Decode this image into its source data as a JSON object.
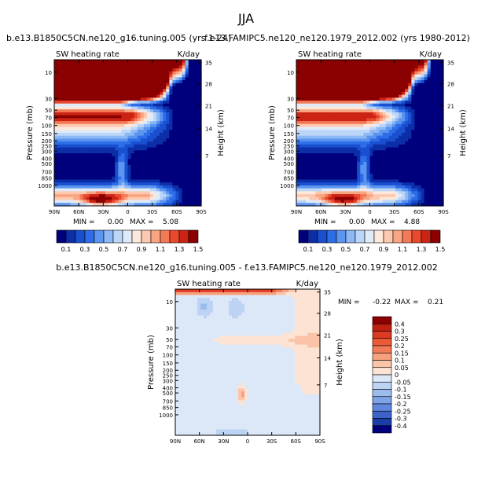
{
  "main_title": "JJA",
  "chart_data": [
    {
      "type": "heatmap",
      "case_title": "b.e13.B1850C5CN.ne120_g16.tuning.005 (yrs 1-24)",
      "field_label": "SW heating rate",
      "units": "K/day",
      "ylabel": "Pressure (mb)",
      "ylabel_right": "Height (km)",
      "x_ticks": [
        "90N",
        "60N",
        "30N",
        "0",
        "30S",
        "60S",
        "90S"
      ],
      "y_ticks": [
        "10",
        "30",
        "50",
        "70",
        "100",
        "150",
        "200",
        "250",
        "300",
        "400",
        "500",
        "700",
        "850",
        "1000"
      ],
      "height_ticks": [
        "35",
        "28",
        "21",
        "14",
        "7"
      ],
      "min_label": "MIN =",
      "min_value": "0.00",
      "max_label": "MAX =",
      "max_value": "5.08",
      "colorbar_labels": [
        "0.1",
        "0.3",
        "0.5",
        "0.7",
        "0.9",
        "1.1",
        "1.3",
        "1.5"
      ],
      "colors": [
        "#00007c",
        "#0c2fa8",
        "#1a4fd0",
        "#2d6ee8",
        "#5b95f0",
        "#8db8f6",
        "#bcd6f8",
        "#e0ebf9",
        "#fde8dc",
        "#fcc9b0",
        "#f9a582",
        "#f47957",
        "#e9492d",
        "#cc2414",
        "#8b0000"
      ]
    },
    {
      "type": "heatmap",
      "case_title": "f.e13.FAMIPC5.ne120_ne120.1979_2012.002 (yrs 1980-2012)",
      "field_label": "SW heating rate",
      "units": "K/day",
      "ylabel": "Pressure (mb)",
      "ylabel_right": "Height (km)",
      "x_ticks": [
        "90N",
        "60N",
        "30N",
        "0",
        "30S",
        "60S",
        "90S"
      ],
      "y_ticks": [
        "10",
        "30",
        "50",
        "70",
        "100",
        "150",
        "200",
        "250",
        "300",
        "400",
        "500",
        "700",
        "850",
        "1000"
      ],
      "height_ticks": [
        "35",
        "28",
        "21",
        "14",
        "7"
      ],
      "min_label": "MIN =",
      "min_value": "0.00",
      "max_label": "MAX =",
      "max_value": "4.88",
      "colorbar_labels": [
        "0.1",
        "0.3",
        "0.5",
        "0.7",
        "0.9",
        "1.1",
        "1.3",
        "1.5"
      ],
      "colors": [
        "#00007c",
        "#0c2fa8",
        "#1a4fd0",
        "#2d6ee8",
        "#5b95f0",
        "#8db8f6",
        "#bcd6f8",
        "#e0ebf9",
        "#fde8dc",
        "#fcc9b0",
        "#f9a582",
        "#f47957",
        "#e9492d",
        "#cc2414",
        "#8b0000"
      ]
    },
    {
      "type": "heatmap",
      "case_title": "b.e13.B1850C5CN.ne120_g16.tuning.005 - f.e13.FAMIPC5.ne120_ne120.1979_2012.002",
      "field_label": "SW heating rate",
      "units": "K/day",
      "ylabel": "Pressure (mb)",
      "ylabel_right": "Height (km)",
      "x_ticks": [
        "90N",
        "60N",
        "30N",
        "0",
        "30S",
        "60S",
        "90S"
      ],
      "y_ticks": [
        "10",
        "30",
        "50",
        "70",
        "100",
        "150",
        "200",
        "250",
        "300",
        "400",
        "500",
        "700",
        "850",
        "1000"
      ],
      "height_ticks": [
        "35",
        "28",
        "21",
        "14",
        "7"
      ],
      "min_label": "MIN =",
      "min_value": "-0.22",
      "max_label": "MAX =",
      "max_value": "0.21",
      "colorbar_labels": [
        "0.4",
        "0.3",
        "0.25",
        "0.2",
        "0.15",
        "0.1",
        "0.05",
        "0",
        "-0.05",
        "-0.1",
        "-0.15",
        "-0.2",
        "-0.25",
        "-0.3",
        "-0.4"
      ],
      "colors": [
        "#8b0000",
        "#c0200f",
        "#dc3a22",
        "#ec5a38",
        "#f37a57",
        "#f7a07e",
        "#fbc4a8",
        "#fde3d3",
        "#dce8f7",
        "#bcd3f3",
        "#9dbcee",
        "#7ea3e6",
        "#5f87db",
        "#3b63c9",
        "#1a3ea8",
        "#00007c"
      ]
    }
  ]
}
